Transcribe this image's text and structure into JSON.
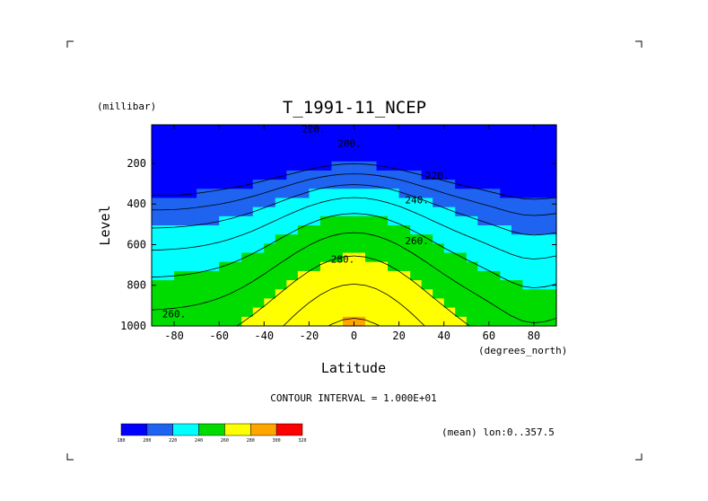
{
  "chart_data": {
    "type": "contour",
    "title": "T_1991-11_NCEP",
    "xlabel": "Latitude",
    "xunits": "(degrees_north)",
    "ylabel": "Level",
    "yunits": "(millibar)",
    "xlim": [
      -90,
      90
    ],
    "ylim": [
      1000,
      10
    ],
    "x_ticks": [
      -80,
      -60,
      -40,
      -20,
      0,
      20,
      40,
      60,
      80
    ],
    "y_ticks": [
      200,
      400,
      600,
      800,
      1000
    ],
    "contour_interval_text": "CONTOUR INTERVAL = 1.000E+01",
    "average_text": "(mean) lon:0..357.5",
    "contour_levels": [
      200,
      210,
      220,
      230,
      240,
      250,
      260,
      270,
      280,
      290,
      300
    ],
    "contour_labels": [
      {
        "text": "220.",
        "lat": -18,
        "lev": 30
      },
      {
        "text": "200.",
        "lat": -2,
        "lev": 100
      },
      {
        "text": "220.",
        "lat": 37,
        "lev": 260
      },
      {
        "text": "240.",
        "lat": 28,
        "lev": 380
      },
      {
        "text": "260.",
        "lat": 28,
        "lev": 580
      },
      {
        "text": "280.",
        "lat": -5,
        "lev": 670
      },
      {
        "text": "260.",
        "lat": -80,
        "lev": 940
      }
    ],
    "fill_bands": [
      {
        "lo": 180,
        "hi": 200,
        "color": "#0000ff"
      },
      {
        "lo": 200,
        "hi": 220,
        "color": "#1e64f0"
      },
      {
        "lo": 220,
        "hi": 240,
        "color": "#00ffff"
      },
      {
        "lo": 240,
        "hi": 260,
        "color": "#00dc00"
      },
      {
        "lo": 260,
        "hi": 280,
        "color": "#ffff00"
      },
      {
        "lo": 280,
        "hi": 300,
        "color": "#ffa500"
      },
      {
        "lo": 300,
        "hi": 320,
        "color": "#ff0000"
      }
    ],
    "colorbar_ticks": [
      "180",
      "200",
      "220",
      "240",
      "260",
      "280",
      "300",
      "320"
    ],
    "grid": false,
    "legend_position": "bottom-left"
  }
}
